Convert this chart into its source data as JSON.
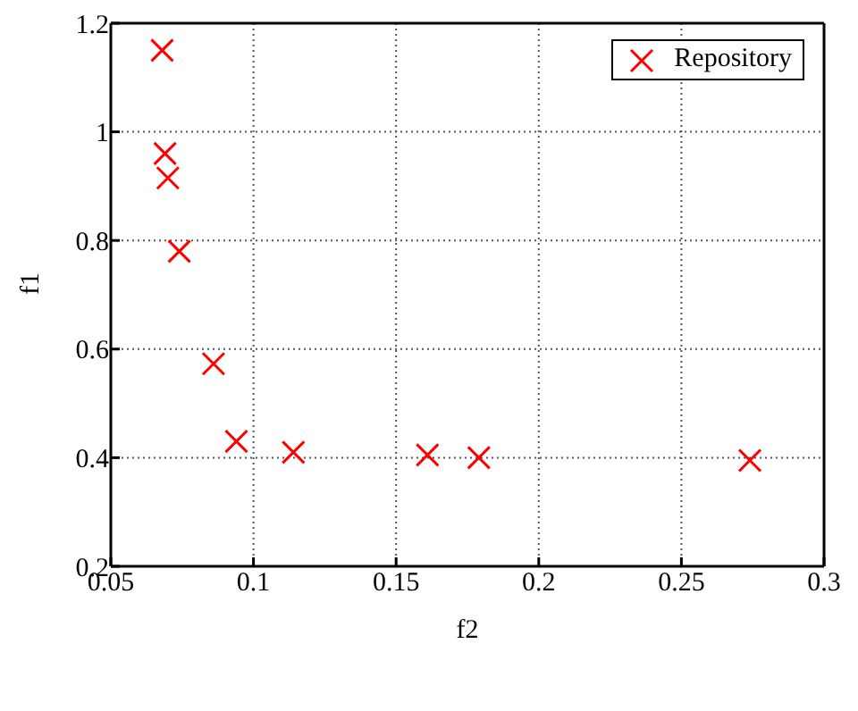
{
  "chart_data": {
    "type": "scatter",
    "xlabel": "f2",
    "ylabel": "f1",
    "xlim": [
      0.05,
      0.3
    ],
    "xticks": [
      0.05,
      0.1,
      0.15,
      0.2,
      0.25,
      0.3
    ],
    "ylim": [
      0.2,
      1.2
    ],
    "yticks": [
      0.2,
      0.4,
      0.6,
      0.8,
      1,
      1.2
    ],
    "grid": true,
    "legend": "top right",
    "marker": "cross",
    "series": [
      {
        "name": "Repository",
        "color": "#ff0000",
        "x": [
          0.068,
          0.069,
          0.07,
          0.074,
          0.086,
          0.094,
          0.114,
          0.161,
          0.179,
          0.274
        ],
        "values": [
          1.15,
          0.96,
          0.915,
          0.78,
          0.573,
          0.43,
          0.41,
          0.405,
          0.4,
          0.395
        ]
      }
    ]
  }
}
